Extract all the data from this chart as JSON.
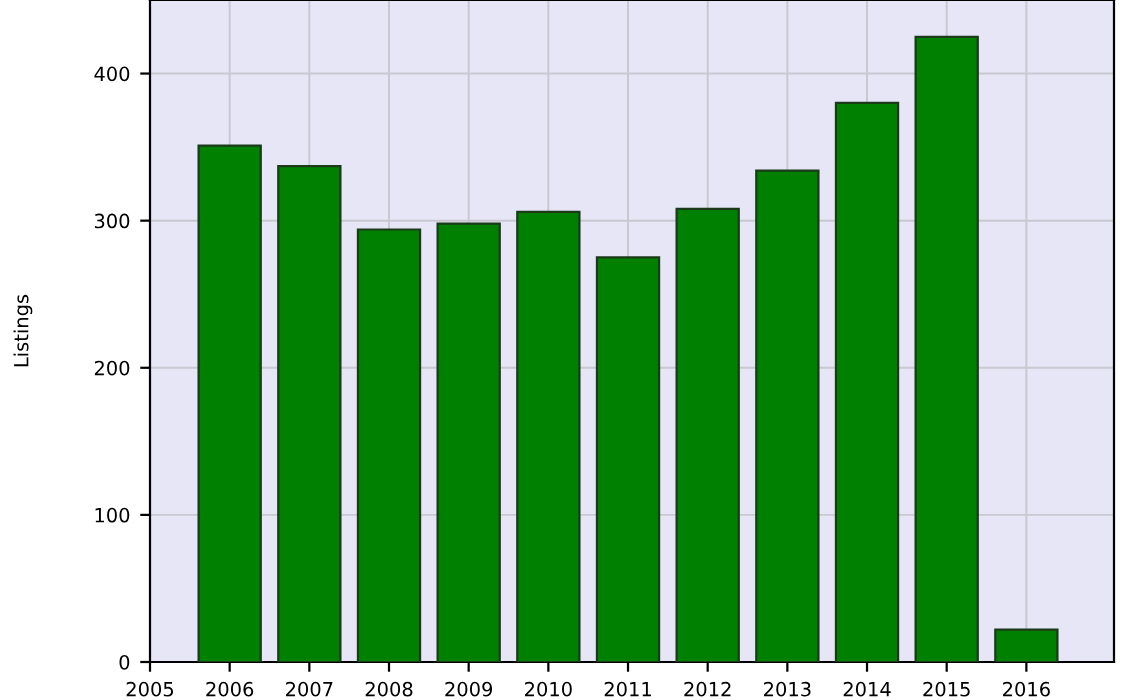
{
  "chart_data": {
    "type": "bar",
    "ylabel": "Listings",
    "x": [
      2006,
      2007,
      2008,
      2009,
      2010,
      2011,
      2012,
      2013,
      2014,
      2015,
      2016
    ],
    "values": [
      351,
      337,
      294,
      298,
      306,
      275,
      308,
      334,
      380,
      425,
      22
    ],
    "color": "#008000",
    "xlim": [
      2005,
      2017.1
    ],
    "xticks": [
      2005,
      2006,
      2007,
      2008,
      2009,
      2010,
      2011,
      2012,
      2013,
      2014,
      2015,
      2016
    ],
    "ylim": [
      0,
      450
    ],
    "yticks": [
      0,
      100,
      200,
      300,
      400
    ],
    "grid": true,
    "legend": false
  }
}
